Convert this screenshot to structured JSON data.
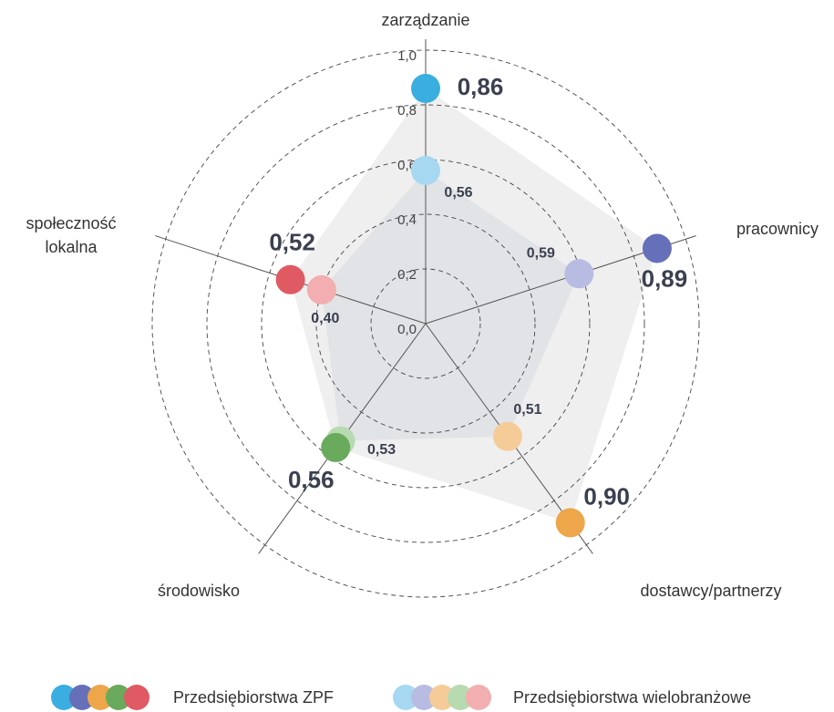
{
  "chart_data": {
    "type": "radar",
    "categories": [
      "zarządzanie",
      "pracownicy",
      "dostawcy/partnerzy",
      "środowisko",
      "społeczność lokalna"
    ],
    "series": [
      {
        "name": "Przedsiębiorstwa ZPF",
        "colors": [
          "#3aaee0",
          "#6670b8",
          "#eea64a",
          "#6aaa5c",
          "#e05a63"
        ],
        "fill": "#efefef",
        "values": [
          0.86,
          0.89,
          0.9,
          0.56,
          0.52
        ],
        "value_labels": [
          "0,86",
          "0,89",
          "0,90",
          "0,56",
          "0,52"
        ]
      },
      {
        "name": "Przedsiębiorstwa wielobranżowe",
        "colors": [
          "#a6d8f2",
          "#b9bce2",
          "#f5cc98",
          "#b7dab0",
          "#f2aeb0"
        ],
        "fill": "#e2e3e6",
        "values": [
          0.56,
          0.59,
          0.51,
          0.53,
          0.4
        ],
        "value_labels": [
          "0,56",
          "0,59",
          "0,51",
          "0,53",
          "0,40"
        ]
      }
    ],
    "rlim": [
      0,
      1
    ],
    "rticks": [
      {
        "value": 0,
        "label": "0,0"
      },
      {
        "value": 0.2,
        "label": "0,2"
      },
      {
        "value": 0.4,
        "label": "0,4"
      },
      {
        "value": 0.6,
        "label": "0,6"
      },
      {
        "value": 0.8,
        "label": "0,8"
      },
      {
        "value": 1,
        "label": "1,0"
      }
    ],
    "grid": true
  }
}
